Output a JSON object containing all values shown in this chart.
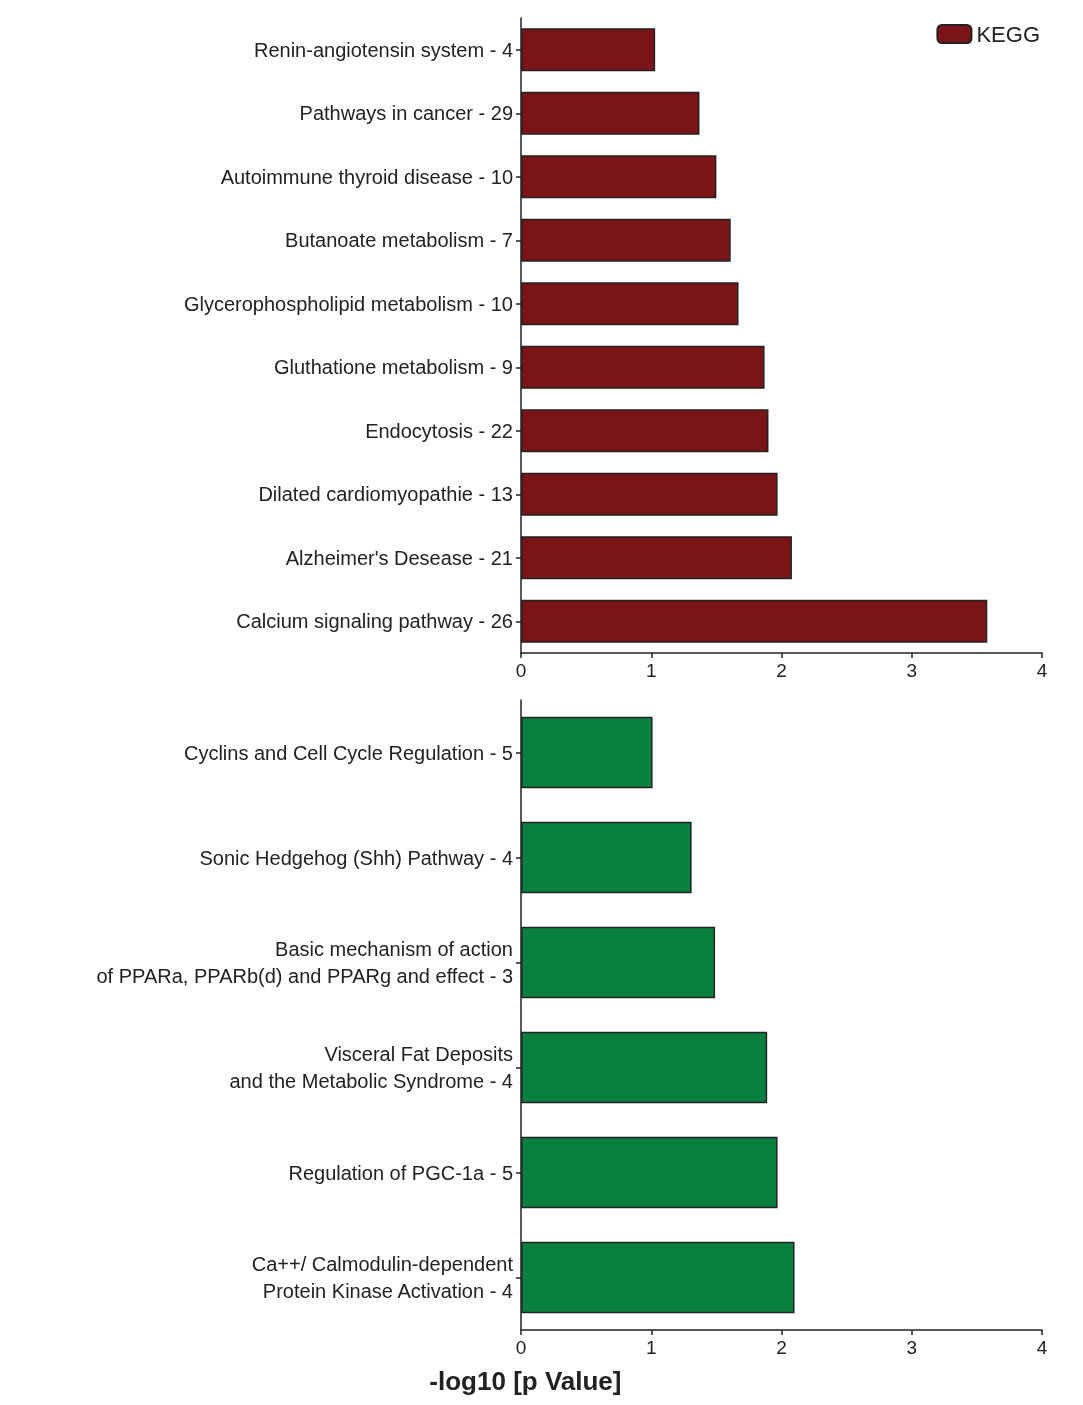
{
  "chart_data": [
    {
      "type": "bar",
      "orientation": "horizontal",
      "categories": [
        "Renin-angiotensin system - 4",
        "Pathways in cancer - 29",
        "Autoimmune thyroid disease - 10",
        "Butanoate metabolism - 7",
        "Glycerophospholipid metabolism - 10",
        "Gluthatione metabolism - 9",
        "Endocytosis - 22",
        "Dilated cardiomyopathie - 13",
        "Alzheimer's Desease - 21",
        "Calcium signaling pathway - 26"
      ],
      "series": [
        {
          "name": "KEGG",
          "color": "#7b1416",
          "values": [
            1.03,
            1.37,
            1.5,
            1.61,
            1.67,
            1.87,
            1.9,
            1.97,
            2.08,
            3.58
          ]
        }
      ],
      "xlim": [
        0,
        4
      ],
      "xticks": [
        0,
        1,
        2,
        3,
        4
      ],
      "grid": false,
      "legend": "top right"
    },
    {
      "type": "bar",
      "orientation": "horizontal",
      "categories": [
        "Cyclins and Cell Cycle Regulation - 5",
        "Sonic Hedgehog (Shh) Pathway - 4",
        "Basic mechanism of action\nof PPARa, PPARb(d) and PPARg and effect - 3",
        "Visceral Fat Deposits\nand the Metabolic Syndrome - 4",
        "Regulation of PGC-1a - 5",
        "Ca++/ Calmodulin-dependent\nProtein Kinase Activation - 4"
      ],
      "series": [
        {
          "color": "#0a8040",
          "values": [
            1.01,
            1.31,
            1.49,
            1.89,
            1.97,
            2.1
          ]
        }
      ],
      "xlim": [
        0,
        4
      ],
      "xticks": [
        0,
        1,
        2,
        3,
        4
      ],
      "grid": false,
      "xlabel": "-log10 [p Value]"
    }
  ]
}
